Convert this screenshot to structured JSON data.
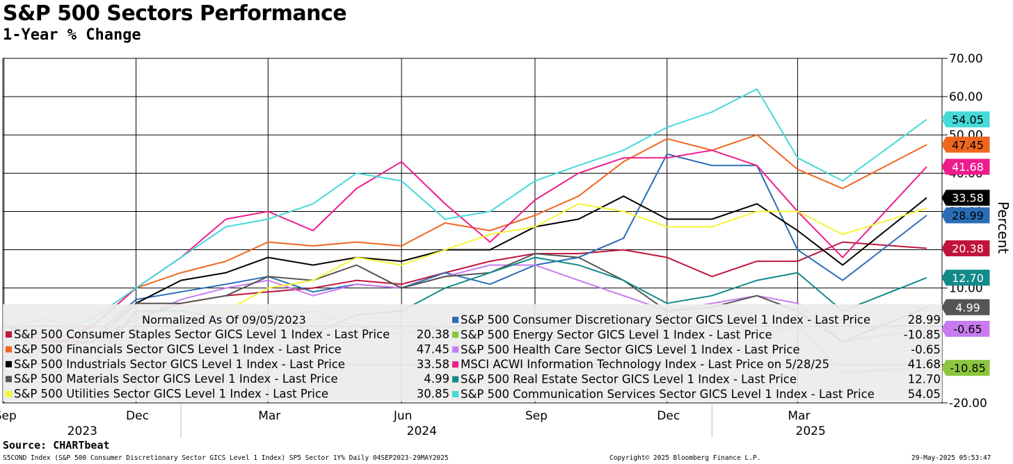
{
  "title": "S&P 500 Sectors Performance",
  "subtitle": "1-Year % Change",
  "source": "Source: CHARTbeat",
  "footer": {
    "left": "S5COND Index (S&P 500 Consumer Discretionary Sector GICS Level 1 Index) SP5 Sector 1Y%  Daily 04SEP2023-29MAY2025",
    "middle": "Copyright© 2025 Bloomberg Finance L.P.",
    "right": "29-May-2025 05:53:47"
  },
  "ylabel": "Percent",
  "chart_data": {
    "type": "line",
    "title": "S&P 500 Sectors Performance",
    "subtitle": "1-Year % Change",
    "ylabel": "Percent",
    "ylim": [
      -20,
      70
    ],
    "yticks": [
      "70.00",
      "60.00",
      "50.00",
      "40.00",
      "30.00",
      "20.00",
      "10.00",
      "0.00",
      "-10.00",
      "-20.00"
    ],
    "xlim": [
      "2023-09-04",
      "2025-05-29"
    ],
    "xticks": [
      {
        "label": "Sep",
        "date": "2023-09-01"
      },
      {
        "label": "Dec",
        "date": "2023-12-01"
      },
      {
        "label": "Mar",
        "date": "2024-03-01"
      },
      {
        "label": "Jun",
        "date": "2024-06-01"
      },
      {
        "label": "Sep",
        "date": "2024-09-01"
      },
      {
        "label": "Dec",
        "date": "2024-12-01"
      },
      {
        "label": "Mar",
        "date": "2025-03-01"
      }
    ],
    "years": [
      {
        "label": "2023",
        "date": "2023-10-25"
      },
      {
        "label": "2024",
        "date": "2024-06-15"
      },
      {
        "label": "2025",
        "date": "2025-03-10"
      }
    ],
    "year_separators": [
      "2024-01-01",
      "2025-01-01"
    ],
    "grid": true,
    "legend_header": "Normalized As Of 09/05/2023",
    "legend_placement": "bottom-left",
    "series": [
      {
        "name": "S&P 500 Consumer Staples Sector GICS Level 1 Index - Last Price",
        "last": "20.38",
        "color": "#c0143c",
        "x": [
          "2023-09-04",
          "2023-10-01",
          "2023-11-01",
          "2023-12-01",
          "2024-01-01",
          "2024-02-01",
          "2024-03-01",
          "2024-04-01",
          "2024-05-01",
          "2024-06-01",
          "2024-07-01",
          "2024-08-01",
          "2024-09-01",
          "2024-10-01",
          "2024-11-01",
          "2024-12-01",
          "2025-01-01",
          "2025-02-01",
          "2025-03-01",
          "2025-04-01",
          "2025-05-29"
        ],
        "y": [
          0,
          -4,
          -4,
          2,
          6,
          8,
          9,
          10,
          12,
          11,
          14,
          17,
          19,
          19,
          20,
          18,
          13,
          17,
          17,
          22,
          20.38
        ]
      },
      {
        "name": "S&P 500 Consumer Discretionary Sector GICS Level 1 Index - Last Price",
        "last": "28.99",
        "color": "#2a6db5",
        "x": [
          "2023-09-04",
          "2023-10-01",
          "2023-11-01",
          "2023-12-01",
          "2024-01-01",
          "2024-02-01",
          "2024-03-01",
          "2024-04-01",
          "2024-05-01",
          "2024-06-01",
          "2024-07-01",
          "2024-08-01",
          "2024-09-01",
          "2024-10-01",
          "2024-11-01",
          "2024-12-01",
          "2025-01-01",
          "2025-02-01",
          "2025-03-01",
          "2025-04-01",
          "2025-05-29"
        ],
        "y": [
          0,
          -4,
          -3,
          7,
          9,
          11,
          13,
          9,
          11,
          10,
          14,
          11,
          16,
          18,
          23,
          45,
          42,
          42,
          20,
          12,
          28.99
        ]
      },
      {
        "name": "S&P 500 Financials Sector GICS Level 1 Index - Last Price",
        "last": "47.45",
        "color": "#f0661e",
        "x": [
          "2023-09-04",
          "2023-10-01",
          "2023-11-01",
          "2023-12-01",
          "2024-01-01",
          "2024-02-01",
          "2024-03-01",
          "2024-04-01",
          "2024-05-01",
          "2024-06-01",
          "2024-07-01",
          "2024-08-01",
          "2024-09-01",
          "2024-10-01",
          "2024-11-01",
          "2024-12-01",
          "2025-01-01",
          "2025-02-01",
          "2025-03-01",
          "2025-04-01",
          "2025-05-29"
        ],
        "y": [
          0,
          -4,
          0,
          10,
          14,
          17,
          22,
          21,
          22,
          21,
          27,
          25,
          29,
          34,
          43,
          49,
          46,
          50,
          41,
          36,
          47.45
        ]
      },
      {
        "name": "S&P 500 Energy Sector GICS Level 1 Index - Last Price",
        "last": "-10.85",
        "color": "#8cc63f",
        "x": [
          "2023-09-04",
          "2023-10-01",
          "2023-11-01",
          "2023-12-01",
          "2024-01-01",
          "2024-02-01",
          "2024-03-01",
          "2024-04-01",
          "2024-05-01",
          "2024-06-01",
          "2024-07-01",
          "2024-08-01",
          "2024-09-01",
          "2024-10-01",
          "2024-11-01",
          "2024-12-01",
          "2025-01-01",
          "2025-02-01",
          "2025-03-01",
          "2025-04-01",
          "2025-05-29"
        ],
        "y": [
          0,
          2,
          -2,
          -6,
          -5,
          -4,
          2,
          4,
          0,
          -2,
          0,
          -3,
          -6,
          -1,
          0,
          -6,
          2,
          -2,
          0,
          -12,
          -10.85
        ]
      },
      {
        "name": "S&P 500 Industrials Sector GICS Level 1 Index - Last Price",
        "last": "33.58",
        "color": "#000000",
        "x": [
          "2023-09-04",
          "2023-10-01",
          "2023-11-01",
          "2023-12-01",
          "2024-01-01",
          "2024-02-01",
          "2024-03-01",
          "2024-04-01",
          "2024-05-01",
          "2024-06-01",
          "2024-07-01",
          "2024-08-01",
          "2024-09-01",
          "2024-10-01",
          "2024-11-01",
          "2024-12-01",
          "2025-01-01",
          "2025-02-01",
          "2025-03-01",
          "2025-04-01",
          "2025-05-29"
        ],
        "y": [
          0,
          -6,
          -4,
          6,
          12,
          14,
          18,
          16,
          18,
          17,
          20,
          20,
          26,
          28,
          34,
          28,
          28,
          32,
          25,
          16,
          33.58
        ]
      },
      {
        "name": "S&P 500 Health Care Sector GICS Level 1 Index - Last Price",
        "last": "-0.65",
        "color": "#c77bef",
        "x": [
          "2023-09-04",
          "2023-10-01",
          "2023-11-01",
          "2023-12-01",
          "2024-01-01",
          "2024-02-01",
          "2024-03-01",
          "2024-04-01",
          "2024-05-01",
          "2024-06-01",
          "2024-07-01",
          "2024-08-01",
          "2024-09-01",
          "2024-10-01",
          "2024-11-01",
          "2024-12-01",
          "2025-01-01",
          "2025-02-01",
          "2025-03-01",
          "2025-04-01",
          "2025-05-29"
        ],
        "y": [
          0,
          -5,
          -6,
          2,
          7,
          10,
          12,
          8,
          11,
          10,
          13,
          16,
          16,
          12,
          8,
          4,
          6,
          8,
          6,
          -4,
          -0.65
        ]
      },
      {
        "name": "S&P 500 Materials Sector GICS Level 1 Index - Last Price",
        "last": "4.99",
        "color": "#555555",
        "x": [
          "2023-09-04",
          "2023-10-01",
          "2023-11-01",
          "2023-12-01",
          "2024-01-01",
          "2024-02-01",
          "2024-03-01",
          "2024-04-01",
          "2024-05-01",
          "2024-06-01",
          "2024-07-01",
          "2024-08-01",
          "2024-09-01",
          "2024-10-01",
          "2024-11-01",
          "2024-12-01",
          "2025-01-01",
          "2025-02-01",
          "2025-03-01",
          "2025-04-01",
          "2025-05-29"
        ],
        "y": [
          0,
          -6,
          -4,
          6,
          6,
          8,
          13,
          12,
          16,
          10,
          13,
          14,
          19,
          18,
          12,
          4,
          5,
          8,
          4,
          -4,
          4.99
        ]
      },
      {
        "name": "MSCI ACWI Information Technology Index - Last Price on 5/28/25",
        "last": "41.68",
        "color": "#ee1c8c",
        "x": [
          "2023-09-04",
          "2023-10-01",
          "2023-11-01",
          "2023-12-01",
          "2024-01-01",
          "2024-02-01",
          "2024-03-01",
          "2024-04-01",
          "2024-05-01",
          "2024-06-01",
          "2024-07-01",
          "2024-08-01",
          "2024-09-01",
          "2024-10-01",
          "2024-11-01",
          "2024-12-01",
          "2025-01-01",
          "2025-02-01",
          "2025-03-01",
          "2025-04-01",
          "2025-05-29"
        ],
        "y": [
          0,
          -6,
          0,
          10,
          18,
          28,
          30,
          25,
          36,
          43,
          32,
          22,
          33,
          40,
          44,
          44,
          46,
          42,
          30,
          18,
          41.68
        ]
      },
      {
        "name": "S&P 500 Utilities Sector GICS Level 1 Index - Last Price",
        "last": "30.85",
        "color": "#f5f538",
        "x": [
          "2023-09-04",
          "2023-10-01",
          "2023-11-01",
          "2023-12-01",
          "2024-01-01",
          "2024-02-01",
          "2024-03-01",
          "2024-04-01",
          "2024-05-01",
          "2024-06-01",
          "2024-07-01",
          "2024-08-01",
          "2024-09-01",
          "2024-10-01",
          "2024-11-01",
          "2024-12-01",
          "2025-01-01",
          "2025-02-01",
          "2025-03-01",
          "2025-04-01",
          "2025-05-29"
        ],
        "y": [
          0,
          -6,
          -2,
          3,
          2,
          4,
          10,
          12,
          18,
          16,
          20,
          24,
          26,
          32,
          30,
          26,
          26,
          30,
          30,
          24,
          30.85
        ]
      },
      {
        "name": "S&P 500 Real Estate Sector GICS Level 1 Index - Last Price",
        "last": "12.70",
        "color": "#138a8a",
        "x": [
          "2023-09-04",
          "2023-10-01",
          "2023-11-01",
          "2023-12-01",
          "2024-01-01",
          "2024-02-01",
          "2024-03-01",
          "2024-04-01",
          "2024-05-01",
          "2024-06-01",
          "2024-07-01",
          "2024-08-01",
          "2024-09-01",
          "2024-10-01",
          "2024-11-01",
          "2024-12-01",
          "2025-01-01",
          "2025-02-01",
          "2025-03-01",
          "2025-04-01",
          "2025-05-29"
        ],
        "y": [
          0,
          -8,
          -10,
          4,
          4,
          2,
          4,
          -2,
          3,
          4,
          10,
          14,
          18,
          16,
          12,
          6,
          8,
          12,
          14,
          4,
          12.7
        ]
      },
      {
        "name": "S&P 500 Communication Services Sector GICS Level 1 Index - Last Price",
        "last": "54.05",
        "color": "#45d9d8",
        "x": [
          "2023-09-04",
          "2023-10-01",
          "2023-11-01",
          "2023-12-01",
          "2024-01-01",
          "2024-02-01",
          "2024-03-01",
          "2024-04-01",
          "2024-05-01",
          "2024-06-01",
          "2024-07-01",
          "2024-08-01",
          "2024-09-01",
          "2024-10-01",
          "2024-11-01",
          "2024-12-01",
          "2025-01-01",
          "2025-02-01",
          "2025-03-01",
          "2025-04-01",
          "2025-05-29"
        ],
        "y": [
          0,
          -2,
          2,
          10,
          18,
          26,
          28,
          32,
          40,
          38,
          28,
          30,
          38,
          42,
          46,
          52,
          56,
          62,
          44,
          38,
          54.05
        ]
      }
    ],
    "end_labels": [
      {
        "value": 54.05,
        "text": "54.05",
        "color": "#45d9d8",
        "text_color": "#000000"
      },
      {
        "value": 47.45,
        "text": "47.45",
        "color": "#f0661e",
        "text_color": "#000000"
      },
      {
        "value": 41.68,
        "text": "41.68",
        "color": "#ee1c8c",
        "text_color": "#ffffff"
      },
      {
        "value": 33.58,
        "text": "33.58",
        "color": "#000000",
        "text_color": "#ffffff"
      },
      {
        "value": 28.99,
        "text": "28.99",
        "color": "#2a6db5",
        "text_color": "#000000"
      },
      {
        "value": 20.38,
        "text": "20.38",
        "color": "#c0143c",
        "text_color": "#ffffff"
      },
      {
        "value": 12.7,
        "text": "12.70",
        "color": "#138a8a",
        "text_color": "#ffffff"
      },
      {
        "value": 4.99,
        "text": "4.99",
        "color": "#555555",
        "text_color": "#ffffff"
      },
      {
        "value": -0.65,
        "text": "-0.65",
        "color": "#c77bef",
        "text_color": "#000000"
      },
      {
        "value": -10.85,
        "text": "-10.85",
        "color": "#8cc63f",
        "text_color": "#000000"
      }
    ],
    "legend_order": [
      [
        "S&P 500 Consumer Staples Sector GICS Level 1 Index - Last Price",
        "S&P 500 Consumer Discretionary Sector GICS Level 1 Index - Last Price"
      ],
      [
        "S&P 500 Financials Sector GICS Level 1 Index - Last Price",
        "S&P 500 Energy Sector GICS Level 1 Index - Last Price"
      ],
      [
        "S&P 500 Industrials Sector GICS Level 1 Index - Last Price",
        "S&P 500 Health Care Sector GICS Level 1 Index - Last Price"
      ],
      [
        "S&P 500 Materials Sector GICS Level 1 Index - Last Price",
        "MSCI ACWI Information Technology Index - Last Price on 5/28/25"
      ],
      [
        "S&P 500 Utilities Sector GICS Level 1 Index - Last Price",
        "S&P 500 Real Estate Sector GICS Level 1 Index - Last Price"
      ],
      [
        "",
        "S&P 500 Communication Services Sector GICS Level 1 Index - Last Price"
      ]
    ]
  }
}
